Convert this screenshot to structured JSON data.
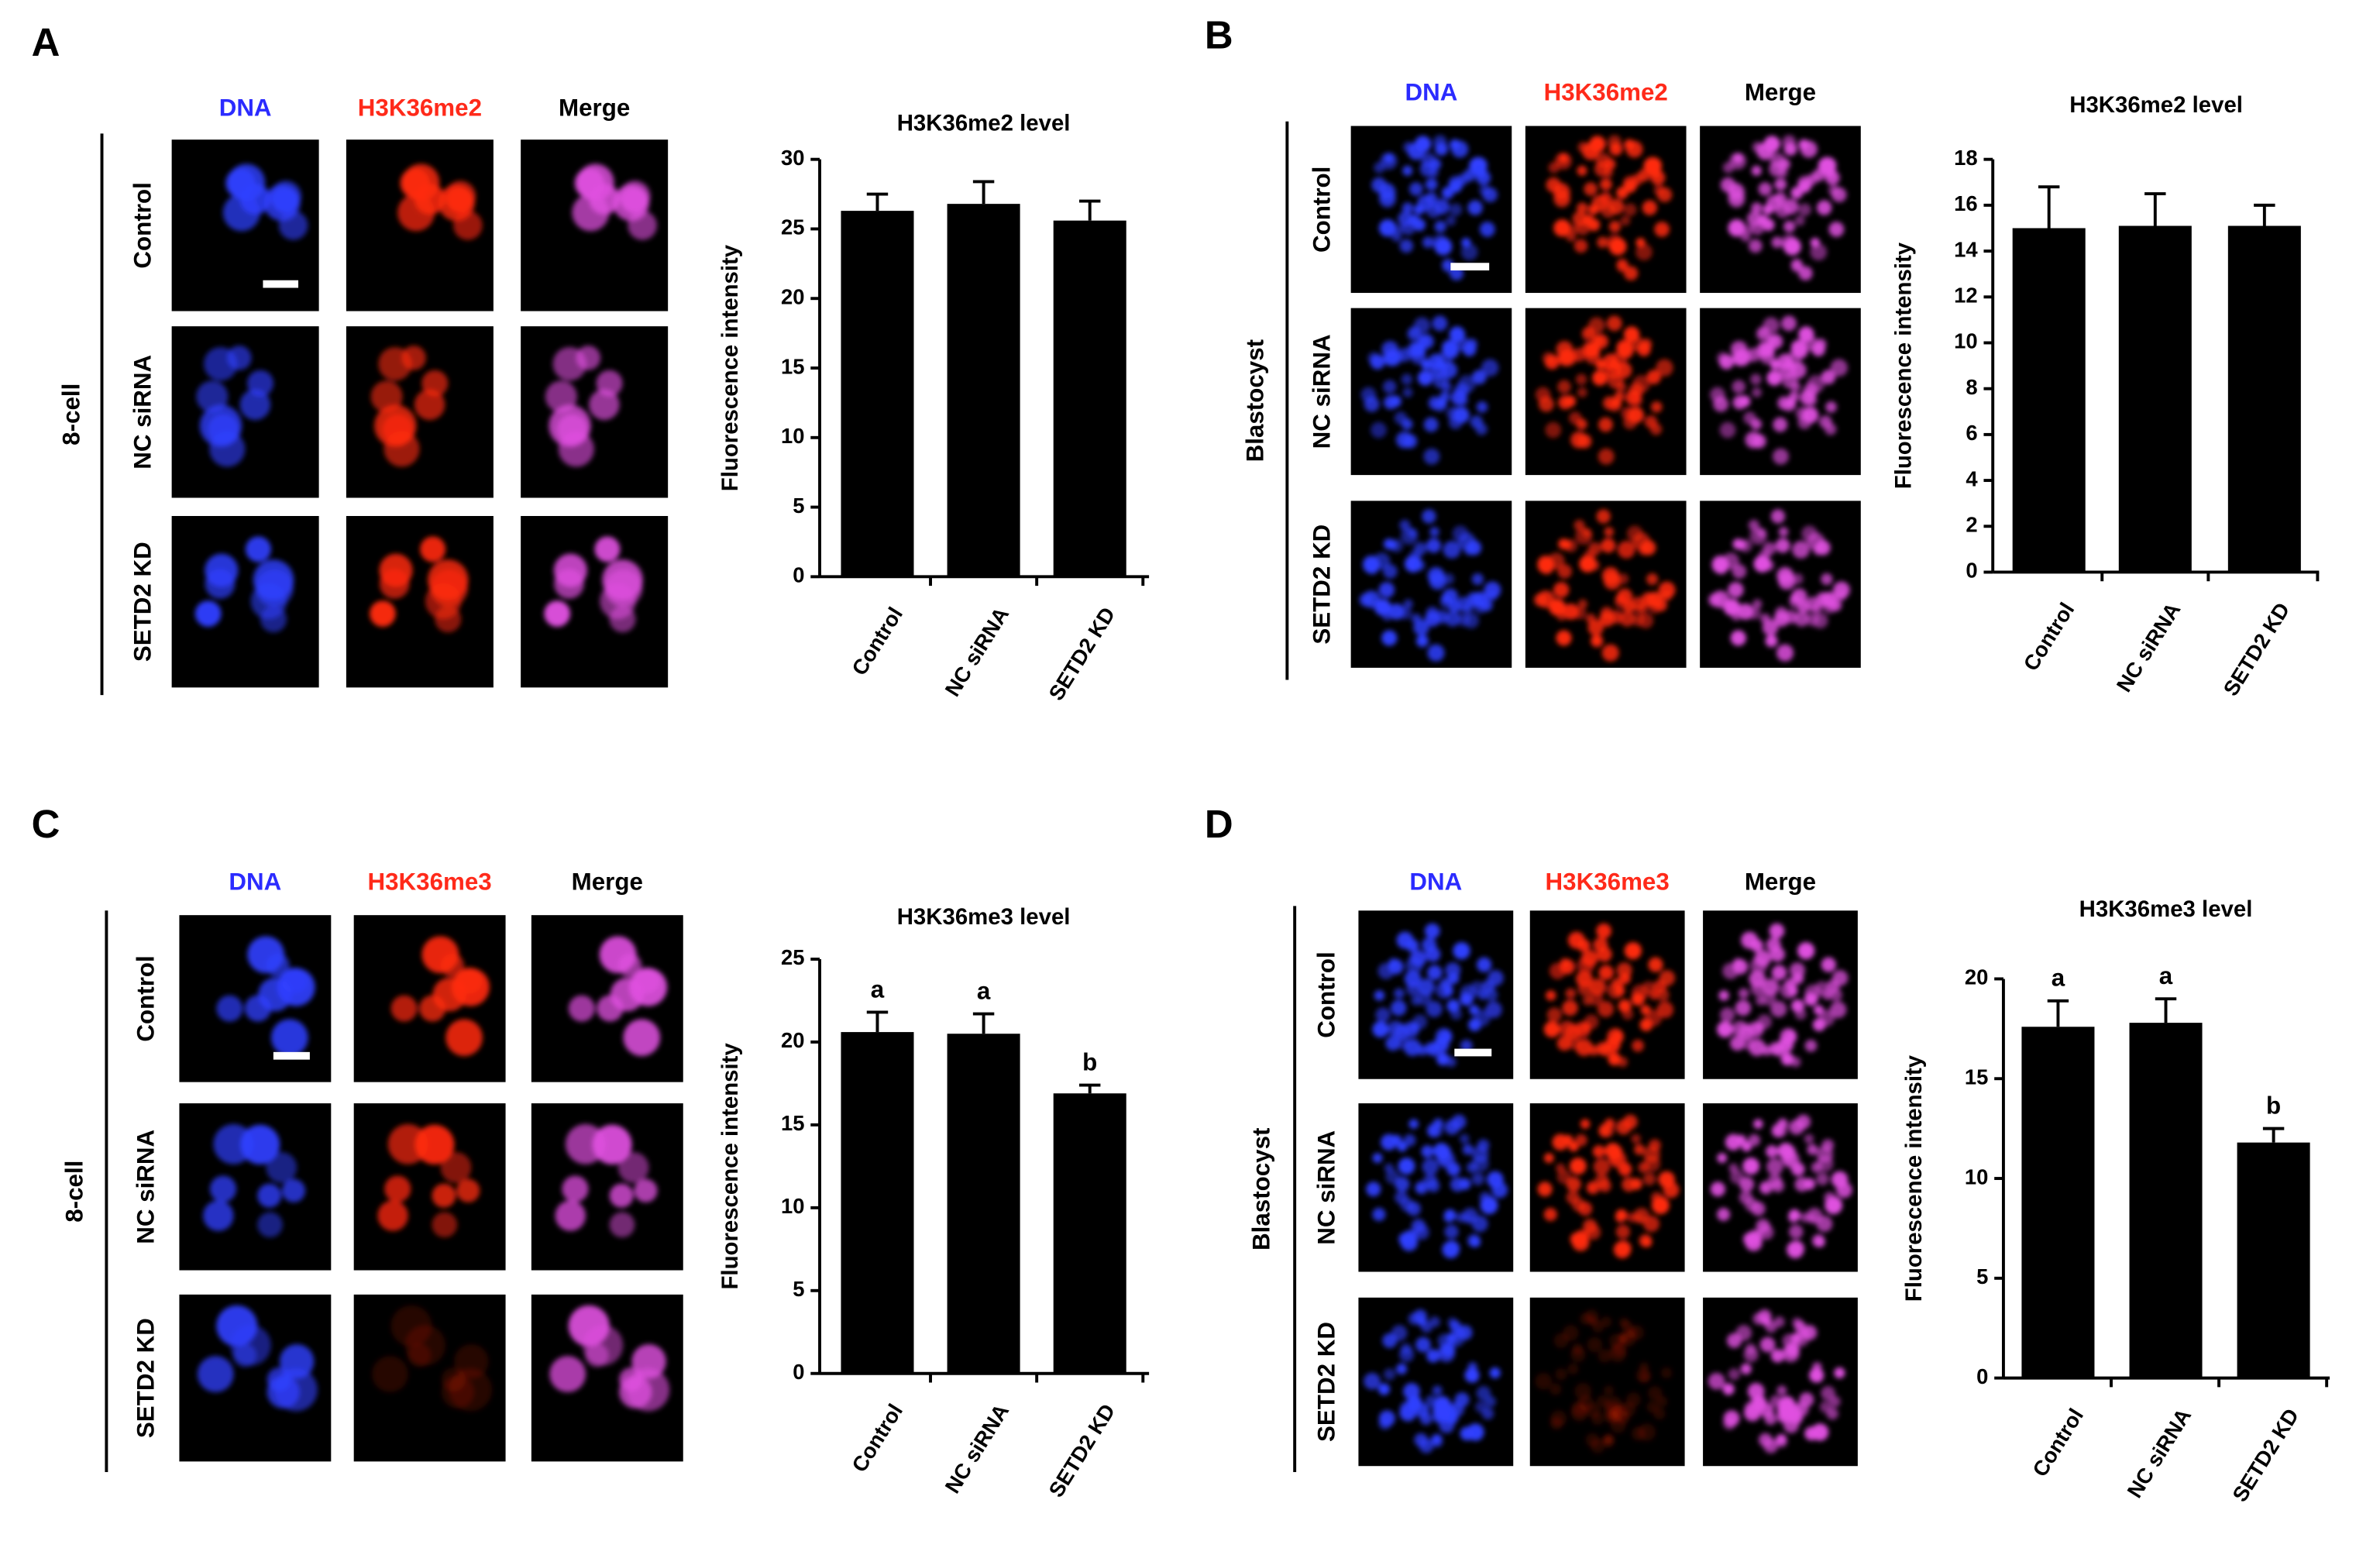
{
  "panels": [
    {
      "letter": "A",
      "stage": "8-cell",
      "columns": [
        "DNA",
        "H3K36me2",
        "Merge"
      ],
      "rows": [
        "Control",
        "NC siRNA",
        "SETD2 KD"
      ]
    },
    {
      "letter": "B",
      "stage": "Blastocyst",
      "columns": [
        "DNA",
        "H3K36me2",
        "Merge"
      ],
      "rows": [
        "Control",
        "NC siRNA",
        "SETD2 KD"
      ]
    },
    {
      "letter": "C",
      "stage": "8-cell",
      "columns": [
        "DNA",
        "H3K36me3",
        "Merge"
      ],
      "rows": [
        "Control",
        "NC siRNA",
        "SETD2 KD"
      ]
    },
    {
      "letter": "D",
      "stage": "Blastocyst",
      "columns": [
        "DNA",
        "H3K36me3",
        "Merge"
      ],
      "rows": [
        "Control",
        "NC siRNA",
        "SETD2 KD"
      ]
    }
  ],
  "chart_data": [
    {
      "type": "bar",
      "title": "H3K36me2 level",
      "y_label": "Fluorescence intensity",
      "categories": [
        "Control",
        "NC siRNA",
        "SETD2 KD"
      ],
      "values": [
        26.3,
        26.8,
        25.6
      ],
      "errors": [
        1.2,
        1.6,
        1.4
      ],
      "color": "#000000",
      "ylim": [
        0,
        30
      ],
      "yticks": [
        0,
        5,
        10,
        15,
        20,
        25,
        30
      ]
    },
    {
      "type": "bar",
      "title": "H3K36me2 level",
      "y_label": "Fluorescence intensity",
      "categories": [
        "Control",
        "NC siRNA",
        "SETD2 KD"
      ],
      "values": [
        15.0,
        15.1,
        15.1
      ],
      "errors": [
        1.8,
        1.4,
        0.9
      ],
      "color": "#000000",
      "ylim": [
        0,
        18
      ],
      "yticks": [
        0,
        2,
        4,
        6,
        8,
        10,
        12,
        14,
        16,
        18
      ]
    },
    {
      "type": "bar",
      "title": "H3K36me3 level",
      "y_label": "Fluorescence intensity",
      "categories": [
        "Control",
        "NC siRNA",
        "SETD2 KD"
      ],
      "values": [
        20.6,
        20.5,
        16.9
      ],
      "errors": [
        1.2,
        1.2,
        0.5
      ],
      "annotations": [
        "a",
        "a",
        "b"
      ],
      "color": "#000000",
      "ylim": [
        0,
        25
      ],
      "yticks": [
        0,
        5,
        10,
        15,
        20,
        25
      ]
    },
    {
      "type": "bar",
      "title": "H3K36me3 level",
      "y_label": "Fluorescence intensity",
      "categories": [
        "Control",
        "NC siRNA",
        "SETD2 KD"
      ],
      "values": [
        17.6,
        17.8,
        11.8
      ],
      "errors": [
        1.3,
        1.2,
        0.7
      ],
      "annotations": [
        "a",
        "a",
        "b"
      ],
      "color": "#000000",
      "ylim": [
        0,
        20
      ],
      "yticks": [
        0,
        5,
        10,
        15,
        20
      ]
    }
  ]
}
